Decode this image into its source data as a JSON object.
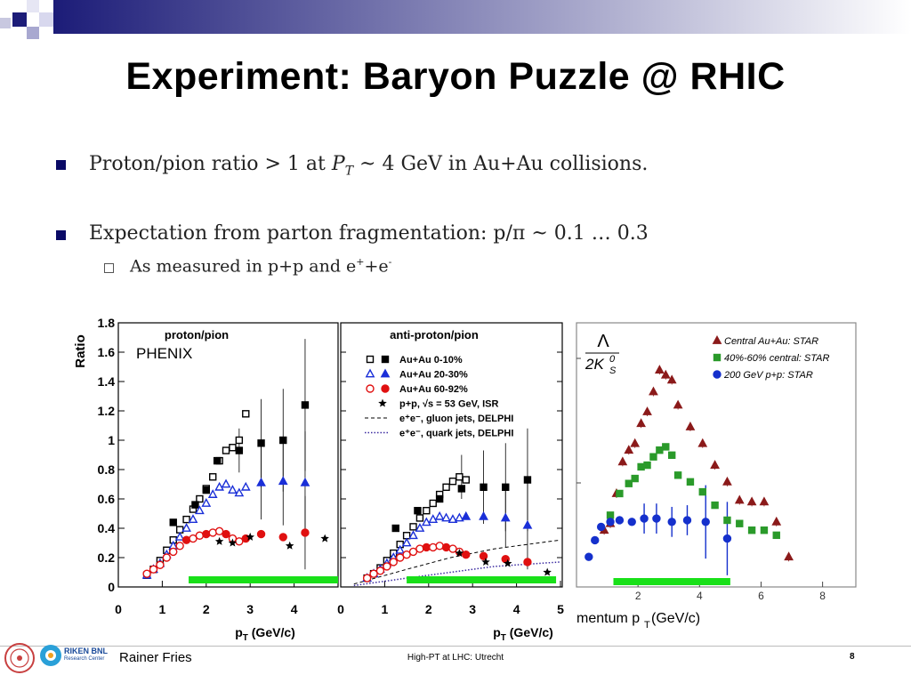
{
  "slide": {
    "title": "Experiment: Baryon Puzzle @ RHIC",
    "bullets": [
      {
        "pre": "Proton/pion ratio > 1 at ",
        "var": "P",
        "sub": "T",
        "post": " ~ 4 GeV in Au+Au collisions."
      },
      {
        "text": "Expectation from parton fragmentation: p/π ~ 0.1 … 0.3"
      }
    ],
    "subbullet": {
      "pre": "As measured in p+p and e",
      "sup1": "+",
      "mid": "+e",
      "sup2": "-"
    }
  },
  "footer": {
    "author": "Rainer Fries",
    "logo_text_1": "RIKEN BNL",
    "logo_text_2": "Research Center",
    "center": "High-PT at LHC: Utrecht",
    "page": "8"
  },
  "colors": {
    "accent_navy": "#1c1c78",
    "bar_green": "#19e019",
    "black": "#000000",
    "blue": "#1a2fd8",
    "red": "#e01010",
    "star_red": "#8b1a1a",
    "star_green": "#2a9a2a",
    "star_blue": "#1530cc"
  },
  "chart_data": [
    {
      "type": "scatter",
      "title": "proton/pion",
      "annotation": "PHENIX",
      "ylabel": "Ratio",
      "xlabel": "p_T (GeV/c)",
      "xlim": [
        0,
        5
      ],
      "ylim": [
        0,
        1.8
      ],
      "xticks": [
        "0",
        "1",
        "2",
        "3",
        "4"
      ],
      "yticks": [
        "0",
        "0.2",
        "0.4",
        "0.6",
        "0.8",
        "1",
        "1.2",
        "1.4",
        "1.6",
        "1.8"
      ],
      "series": [
        {
          "name": "Au+Au 0-10% (open)",
          "x": [
            0.65,
            0.8,
            0.95,
            1.1,
            1.25,
            1.4,
            1.55,
            1.7,
            1.85,
            2.0,
            2.15,
            2.3,
            2.45,
            2.6,
            2.75,
            2.9
          ],
          "y": [
            0.08,
            0.12,
            0.18,
            0.25,
            0.32,
            0.39,
            0.46,
            0.53,
            0.6,
            0.67,
            0.75,
            0.86,
            0.93,
            0.95,
            1.0,
            1.18
          ]
        },
        {
          "name": "Au+Au 0-10% (filled)",
          "x": [
            1.25,
            1.75,
            2.0,
            2.25,
            2.75,
            3.25,
            3.75,
            4.25
          ],
          "y": [
            0.44,
            0.56,
            0.66,
            0.86,
            0.93,
            0.98,
            1.0,
            1.24
          ]
        },
        {
          "name": "Au+Au 20-30%",
          "x": [
            0.65,
            0.8,
            0.95,
            1.1,
            1.25,
            1.4,
            1.55,
            1.7,
            1.85,
            2.0,
            2.15,
            2.3,
            2.45,
            2.6,
            2.75,
            2.9,
            3.25,
            3.75,
            4.25
          ],
          "y": [
            0.08,
            0.12,
            0.16,
            0.22,
            0.28,
            0.34,
            0.4,
            0.46,
            0.52,
            0.57,
            0.63,
            0.68,
            0.7,
            0.66,
            0.64,
            0.68,
            0.71,
            0.72,
            0.71
          ]
        },
        {
          "name": "Au+Au 60-92%",
          "x": [
            0.65,
            0.8,
            0.95,
            1.1,
            1.25,
            1.4,
            1.55,
            1.7,
            1.85,
            2.0,
            2.15,
            2.3,
            2.45,
            2.6,
            2.75,
            2.9,
            3.25,
            3.75,
            4.25
          ],
          "y": [
            0.09,
            0.12,
            0.15,
            0.2,
            0.24,
            0.28,
            0.32,
            0.33,
            0.35,
            0.36,
            0.37,
            0.38,
            0.36,
            0.33,
            0.31,
            0.33,
            0.36,
            0.34,
            0.37
          ]
        },
        {
          "name": "p+p, √s = 53 GeV, ISR",
          "x": [
            2.3,
            2.6,
            3.0,
            3.9,
            4.7
          ],
          "y": [
            0.31,
            0.3,
            0.34,
            0.28,
            0.33
          ]
        }
      ],
      "bar": {
        "x": [
          1.6,
          5.0
        ],
        "y": 0.05
      }
    },
    {
      "type": "scatter",
      "title": "anti-proton/pion",
      "xlabel": "p_T (GeV/c)",
      "xlim": [
        0,
        5
      ],
      "ylim": [
        0,
        1.8
      ],
      "xticks": [
        "0",
        "1",
        "2",
        "3",
        "4",
        "5"
      ],
      "legend": [
        {
          "label": "Au+Au 0-10%",
          "marker": "square"
        },
        {
          "label": "Au+Au 20-30%",
          "marker": "triangle"
        },
        {
          "label": "Au+Au 60-92%",
          "marker": "circle"
        },
        {
          "label": "p+p, √s = 53 GeV, ISR",
          "marker": "star"
        },
        {
          "label": "e⁺e⁻, gluon jets, DELPHI",
          "marker": "dashed"
        },
        {
          "label": "e⁺e⁻, quark jets, DELPHI",
          "marker": "dotted"
        }
      ],
      "series": [
        {
          "name": "Au+Au 0-10% (open)",
          "x": [
            0.6,
            0.75,
            0.9,
            1.05,
            1.2,
            1.35,
            1.5,
            1.65,
            1.8,
            1.95,
            2.1,
            2.25,
            2.4,
            2.55,
            2.7,
            2.85
          ],
          "y": [
            0.06,
            0.09,
            0.13,
            0.18,
            0.23,
            0.29,
            0.35,
            0.41,
            0.47,
            0.52,
            0.57,
            0.63,
            0.68,
            0.72,
            0.75,
            0.73
          ]
        },
        {
          "name": "Au+Au 0-10% (filled)",
          "x": [
            1.25,
            1.75,
            2.25,
            2.75,
            3.25,
            3.75,
            4.25
          ],
          "y": [
            0.4,
            0.52,
            0.6,
            0.67,
            0.68,
            0.68,
            0.73
          ]
        },
        {
          "name": "Au+Au 20-30%",
          "x": [
            0.6,
            0.75,
            0.9,
            1.05,
            1.2,
            1.35,
            1.5,
            1.65,
            1.8,
            1.95,
            2.1,
            2.25,
            2.4,
            2.55,
            2.7,
            2.85,
            3.25,
            3.75,
            4.25
          ],
          "y": [
            0.06,
            0.09,
            0.12,
            0.16,
            0.2,
            0.25,
            0.3,
            0.35,
            0.4,
            0.44,
            0.46,
            0.48,
            0.47,
            0.46,
            0.47,
            0.48,
            0.48,
            0.47,
            0.42
          ]
        },
        {
          "name": "Au+Au 60-92%",
          "x": [
            0.6,
            0.75,
            0.9,
            1.05,
            1.2,
            1.35,
            1.5,
            1.65,
            1.8,
            1.95,
            2.1,
            2.25,
            2.4,
            2.55,
            2.7,
            2.85,
            3.25,
            3.75,
            4.25
          ],
          "y": [
            0.06,
            0.09,
            0.11,
            0.14,
            0.17,
            0.2,
            0.22,
            0.24,
            0.26,
            0.27,
            0.27,
            0.28,
            0.27,
            0.26,
            0.24,
            0.22,
            0.21,
            0.19,
            0.17
          ]
        },
        {
          "name": "p+p, √s = 53 GeV, ISR",
          "x": [
            2.7,
            3.3,
            3.8,
            4.7
          ],
          "y": [
            0.23,
            0.17,
            0.16,
            0.1
          ]
        }
      ],
      "gluon_line": {
        "x": [
          0.3,
          1.5,
          2.5,
          3.5,
          5.0
        ],
        "y": [
          0.02,
          0.12,
          0.2,
          0.26,
          0.32
        ]
      },
      "quark_line": {
        "x": [
          0.3,
          1.5,
          2.5,
          3.5,
          5.0
        ],
        "y": [
          0.01,
          0.06,
          0.1,
          0.14,
          0.17
        ]
      },
      "bar": {
        "x": [
          1.5,
          4.9
        ],
        "y": 0.05
      }
    },
    {
      "type": "scatter",
      "label_main": "Λ",
      "label_den": "2K",
      "label_sub": "S",
      "label_sup": "0",
      "xlabel": "mentum p",
      "xlabel_sub": "T",
      "xlabel_post": " (GeV/c)",
      "xlim": [
        0,
        9
      ],
      "ylim": [
        0,
        1.8
      ],
      "xticks": [
        "2",
        "4",
        "6",
        "8"
      ],
      "legend": [
        {
          "label": "Central Au+Au: STAR",
          "marker": "triangle"
        },
        {
          "label": "40%-60% central: STAR",
          "marker": "square"
        },
        {
          "label": "200 GeV p+p: STAR",
          "marker": "circle"
        }
      ],
      "series": [
        {
          "name": "Central Au+Au: STAR",
          "x": [
            0.9,
            1.1,
            1.3,
            1.5,
            1.7,
            1.9,
            2.1,
            2.3,
            2.5,
            2.7,
            2.9,
            3.1,
            3.3,
            3.7,
            4.1,
            4.5,
            4.9,
            5.3,
            5.7,
            6.1,
            6.5,
            6.9
          ],
          "y": [
            0.34,
            0.38,
            0.56,
            0.75,
            0.82,
            0.86,
            0.98,
            1.05,
            1.17,
            1.3,
            1.27,
            1.24,
            1.09,
            0.96,
            0.86,
            0.73,
            0.63,
            0.52,
            0.51,
            0.51,
            0.39,
            0.18
          ]
        },
        {
          "name": "40%-60% central: STAR",
          "x": [
            1.1,
            1.4,
            1.7,
            1.9,
            2.1,
            2.3,
            2.5,
            2.7,
            2.9,
            3.1,
            3.3,
            3.7,
            4.1,
            4.5,
            4.9,
            5.3,
            5.7,
            6.1,
            6.5
          ],
          "y": [
            0.43,
            0.56,
            0.62,
            0.65,
            0.72,
            0.73,
            0.78,
            0.82,
            0.84,
            0.79,
            0.67,
            0.63,
            0.57,
            0.49,
            0.4,
            0.38,
            0.34,
            0.34,
            0.31
          ]
        },
        {
          "name": "200 GeV p+p: STAR",
          "x": [
            0.4,
            0.6,
            0.8,
            1.1,
            1.4,
            1.8,
            2.2,
            2.6,
            3.1,
            3.6,
            4.2,
            4.9
          ],
          "y": [
            0.18,
            0.28,
            0.36,
            0.39,
            0.4,
            0.39,
            0.41,
            0.41,
            0.39,
            0.4,
            0.39,
            0.29
          ]
        }
      ],
      "bar": {
        "x": [
          1.2,
          5.0
        ],
        "y": 0.05
      }
    }
  ]
}
